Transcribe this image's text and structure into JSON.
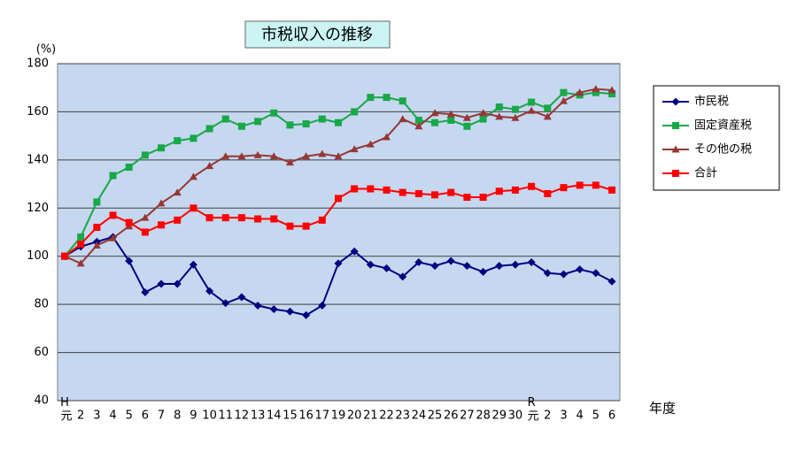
{
  "chart_data": {
    "type": "line",
    "title": "市税収入の推移",
    "y_label": "(%)",
    "x_label": "年度",
    "categories": [
      "H元",
      "2",
      "3",
      "4",
      "5",
      "6",
      "7",
      "8",
      "9",
      "10",
      "11",
      "12",
      "13",
      "14",
      "15",
      "16",
      "17",
      "19",
      "20",
      "21",
      "22",
      "23",
      "24",
      "25",
      "26",
      "27",
      "28",
      "29",
      "30",
      "R元",
      "2",
      "3",
      "4",
      "5",
      "6"
    ],
    "series": [
      {
        "name": "市民税",
        "color": "#000080",
        "marker": "diamond",
        "values": [
          100,
          104,
          106,
          108,
          98,
          85,
          88.5,
          88.5,
          96.5,
          85.5,
          80.5,
          83,
          79.5,
          78,
          77,
          75.5,
          79.5,
          97,
          102,
          96.5,
          95,
          91.5,
          97.5,
          96,
          98,
          96,
          93.5,
          96,
          96.5,
          97.5,
          93,
          92.5,
          94.5,
          93,
          89.5
        ]
      },
      {
        "name": "固定資産税",
        "color": "#18a848",
        "marker": "square",
        "values": [
          100,
          108,
          122.5,
          133.5,
          137,
          142,
          145,
          148,
          149,
          153,
          157,
          154,
          156,
          159.5,
          154.5,
          155,
          157,
          155.5,
          160,
          166,
          166,
          164.5,
          156.5,
          155.5,
          156.5,
          154,
          157,
          162,
          161,
          164,
          161.5,
          168,
          167,
          168,
          167.5
        ]
      },
      {
        "name": "その他の税",
        "color": "#953735",
        "marker": "triangle",
        "values": [
          100,
          97,
          104.5,
          107.5,
          112.5,
          116,
          122,
          126.5,
          133,
          137.5,
          141.5,
          141.5,
          142,
          141.5,
          139,
          141.5,
          142.5,
          141.5,
          144.5,
          146.5,
          149.5,
          157,
          154,
          159.5,
          159,
          157.5,
          159.5,
          158,
          157.5,
          160.5,
          158,
          164.5,
          168,
          169.5,
          169
        ]
      },
      {
        "name": "合計",
        "color": "#ff0000",
        "marker": "square",
        "values": [
          100,
          105,
          112,
          117,
          114,
          110,
          113,
          115,
          120,
          116,
          116,
          116,
          115.5,
          115.5,
          112.5,
          112.5,
          115,
          124,
          128,
          128,
          127.5,
          126.5,
          126,
          125.5,
          126.5,
          124.5,
          124.5,
          127,
          127.5,
          129,
          126,
          128.5,
          129.5,
          129.5,
          127.5
        ]
      }
    ],
    "ylim": [
      40,
      180
    ],
    "yticks": [
      40,
      60,
      80,
      100,
      120,
      140,
      160,
      180
    ],
    "grid": true
  }
}
